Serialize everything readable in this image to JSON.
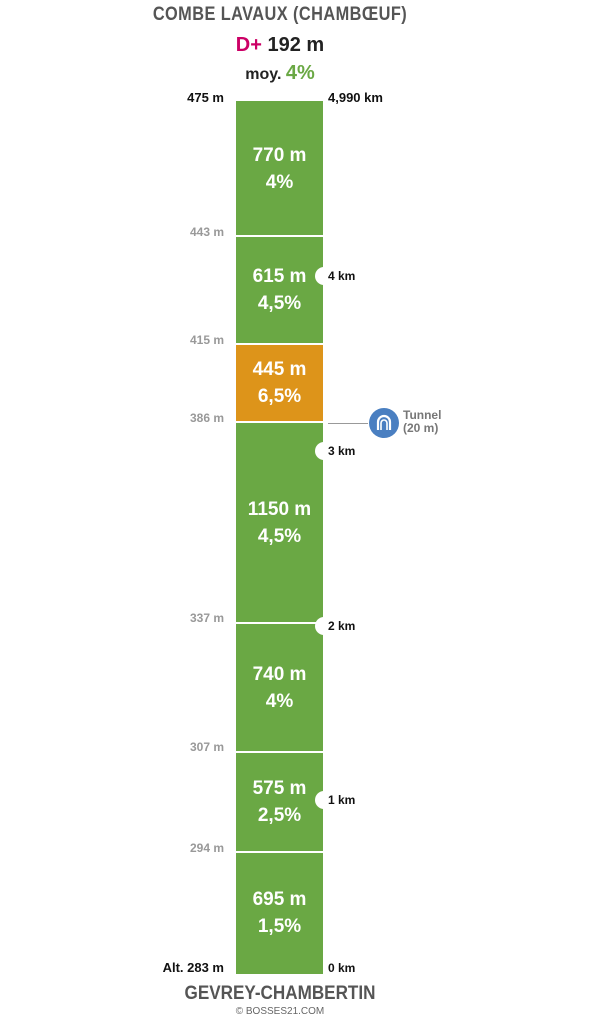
{
  "header": {
    "title": "COMBE LAVAUX (CHAMBŒUF)",
    "dplus_label": "D+",
    "dplus_value": "192 m",
    "avg_label": "moy.",
    "avg_value": "4%"
  },
  "top_labels": {
    "altitude": "475 m",
    "distance": "4,990 km"
  },
  "segments": [
    {
      "length": "770 m",
      "grade": "4%",
      "color": "#6aa844"
    },
    {
      "length": "615 m",
      "grade": "4,5%",
      "color": "#6aa844"
    },
    {
      "length": "445 m",
      "grade": "6,5%",
      "color": "#dd941a"
    },
    {
      "length": "1150 m",
      "grade": "4,5%",
      "color": "#6aa844"
    },
    {
      "length": "740 m",
      "grade": "4%",
      "color": "#6aa844"
    },
    {
      "length": "575 m",
      "grade": "2,5%",
      "color": "#6aa844"
    },
    {
      "length": "695 m",
      "grade": "1,5%",
      "color": "#6aa844"
    }
  ],
  "altitudes": [
    "443 m",
    "415 m",
    "386 m",
    "337 m",
    "307 m",
    "294 m",
    "Alt. 283 m"
  ],
  "km_markers": [
    "4 km",
    "3 km",
    "2 km",
    "1 km",
    "0 km"
  ],
  "tunnel": {
    "line1": "Tunnel",
    "line2": "(20 m)",
    "icon": "tunnel-icon"
  },
  "footer": {
    "start_name": "GEVREY-CHAMBERTIN",
    "credit": "© BOSSES21.COM"
  }
}
